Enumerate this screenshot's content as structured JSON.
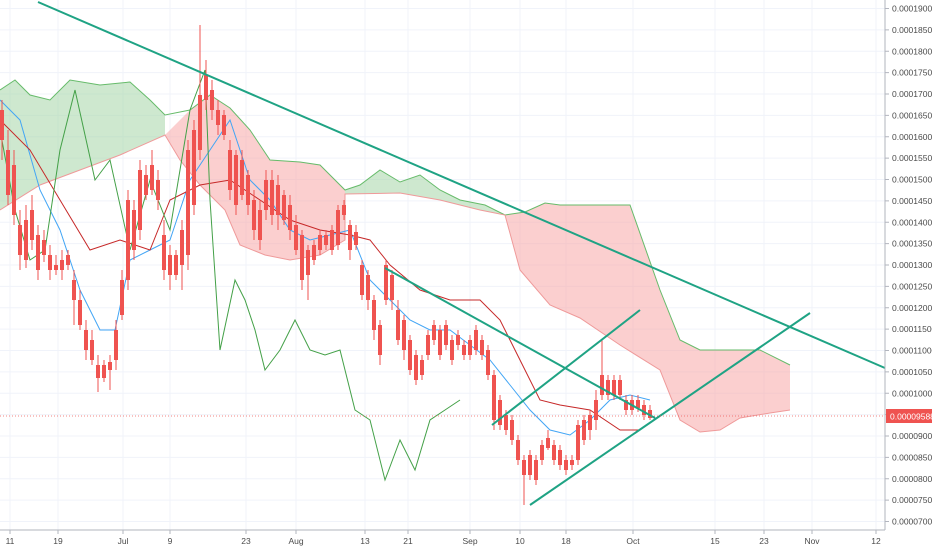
{
  "chart_data": {
    "type": "candlestick",
    "title": "",
    "xlabel": "",
    "ylabel": "",
    "ylim": [
      6.8e-06,
      0.0001935
    ],
    "y_tick_labels": [
      "0.00007000",
      "0.00007500",
      "0.00008000",
      "0.00008500",
      "0.00009000",
      "0.00009500",
      "0.00010000",
      "0.00010500",
      "0.00011000",
      "0.00011500",
      "0.00012000",
      "0.00012500",
      "0.00013000",
      "0.00013500",
      "0.00014000",
      "0.00014500",
      "0.00015000",
      "0.00015500",
      "0.00016000",
      "0.00016500",
      "0.00017000",
      "0.00017500",
      "0.00018000",
      "0.00018500",
      "0.00019000"
    ],
    "y_tick_values": [
      7e-05,
      7.5e-05,
      8e-05,
      8.5e-05,
      9e-05,
      9.5e-05,
      0.0001,
      0.000105,
      0.00011,
      0.000115,
      0.00012,
      0.000125,
      0.00013,
      0.000135,
      0.00014,
      0.000145,
      0.00015,
      0.000155,
      0.00016,
      0.000165,
      0.00017,
      0.000175,
      0.00018,
      0.000185,
      0.00019
    ],
    "x_tick_labels": [
      "11",
      "19",
      "Jul",
      "9",
      "23",
      "Aug",
      "13",
      "21",
      "Sep",
      "10",
      "18",
      "Oct",
      "15",
      "23",
      "Nov",
      "12"
    ],
    "current_price_label": "0.00009588",
    "current_price": 9.588e-05,
    "grid": true,
    "colors": {
      "up": "#26a69a",
      "down": "#ef5350",
      "price_line": "#ef5350",
      "trendline": "#1fa384",
      "bull_cloud": "#a5d6a7",
      "bear_cloud": "#f8a8a8"
    }
  }
}
